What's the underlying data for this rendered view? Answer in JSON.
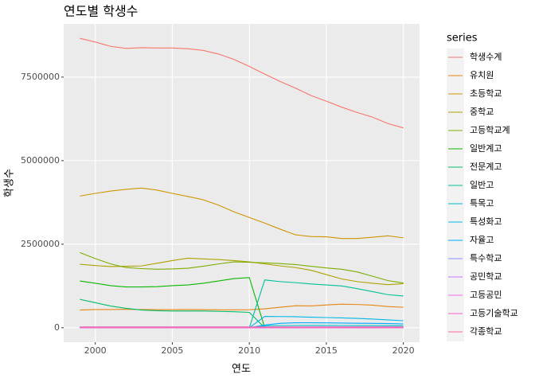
{
  "chart_data": {
    "type": "line",
    "title": "연도별 학생수",
    "x_label": "연도",
    "y_label": "학생수",
    "legend_title": "series",
    "legend": "right",
    "grid": true,
    "x": [
      1999,
      2000,
      2001,
      2002,
      2003,
      2004,
      2005,
      2006,
      2007,
      2008,
      2009,
      2010,
      2011,
      2012,
      2013,
      2014,
      2015,
      2016,
      2017,
      2018,
      2019,
      2020
    ],
    "xlim": [
      1997.95,
      2021.05
    ],
    "xticks": [
      2000,
      2005,
      2010,
      2015,
      2020
    ],
    "ylim": [
      -433000,
      9093000
    ],
    "yticks": [
      0,
      2500000,
      5000000,
      7500000
    ],
    "series": [
      {
        "name": "학생수계",
        "color": "#F8766D",
        "values": [
          8660000,
          8550000,
          8420000,
          8360000,
          8380000,
          8370000,
          8370000,
          8350000,
          8300000,
          8190000,
          8030000,
          7820000,
          7590000,
          7370000,
          7170000,
          6950000,
          6780000,
          6600000,
          6440000,
          6300000,
          6110000,
          5980000
        ]
      },
      {
        "name": "유치원",
        "color": "#E68613",
        "values": [
          530000,
          545000,
          545000,
          550000,
          546000,
          541000,
          541000,
          545000,
          541000,
          537000,
          537000,
          538000,
          565000,
          613000,
          658000,
          653000,
          683000,
          705000,
          695000,
          676000,
          634000,
          612000
        ]
      },
      {
        "name": "초등학교",
        "color": "#CD9600",
        "values": [
          3940000,
          4020000,
          4090000,
          4140000,
          4180000,
          4120000,
          4020000,
          3930000,
          3830000,
          3670000,
          3470000,
          3300000,
          3130000,
          2950000,
          2780000,
          2730000,
          2720000,
          2670000,
          2670000,
          2710000,
          2750000,
          2690000
        ]
      },
      {
        "name": "중학교",
        "color": "#ABA300",
        "values": [
          1900000,
          1860000,
          1830000,
          1840000,
          1850000,
          1930000,
          2010000,
          2080000,
          2060000,
          2040000,
          2010000,
          1970000,
          1910000,
          1850000,
          1800000,
          1720000,
          1590000,
          1460000,
          1380000,
          1330000,
          1290000,
          1320000
        ]
      },
      {
        "name": "고등학교계",
        "color": "#7CAE00",
        "values": [
          2250000,
          2070000,
          1910000,
          1800000,
          1770000,
          1750000,
          1760000,
          1780000,
          1840000,
          1910000,
          1970000,
          1960000,
          1940000,
          1920000,
          1890000,
          1840000,
          1790000,
          1750000,
          1670000,
          1540000,
          1410000,
          1340000
        ]
      },
      {
        "name": "일반계고",
        "color": "#0CB702",
        "values": [
          1400000,
          1330000,
          1260000,
          1220000,
          1220000,
          1230000,
          1260000,
          1280000,
          1330000,
          1400000,
          1470000,
          1500000,
          0,
          0,
          0,
          0,
          0,
          0,
          0,
          0,
          0,
          0
        ]
      },
      {
        "name": "전문계고",
        "color": "#00BE67",
        "values": [
          850000,
          750000,
          650000,
          580000,
          530000,
          510000,
          500000,
          500000,
          500000,
          490000,
          480000,
          460000,
          0,
          0,
          0,
          0,
          0,
          0,
          0,
          0,
          0,
          0
        ]
      },
      {
        "name": "일반고",
        "color": "#00C19A",
        "values": [
          0,
          0,
          0,
          0,
          0,
          0,
          0,
          0,
          0,
          0,
          0,
          0,
          1430000,
          1380000,
          1350000,
          1310000,
          1280000,
          1250000,
          1170000,
          1080000,
          990000,
          950000
        ]
      },
      {
        "name": "특목고",
        "color": "#00BFC4",
        "values": [
          0,
          0,
          0,
          0,
          0,
          0,
          0,
          0,
          0,
          0,
          0,
          0,
          60000,
          64000,
          67000,
          68000,
          68000,
          67000,
          66000,
          65000,
          63000,
          62000
        ]
      },
      {
        "name": "특성화고",
        "color": "#00B8E7",
        "values": [
          0,
          0,
          0,
          0,
          0,
          0,
          0,
          0,
          0,
          0,
          0,
          0,
          340000,
          335000,
          330000,
          315000,
          305000,
          295000,
          280000,
          260000,
          235000,
          210000
        ]
      },
      {
        "name": "자율고",
        "color": "#00A9FF",
        "values": [
          0,
          0,
          0,
          0,
          0,
          0,
          0,
          0,
          0,
          0,
          0,
          0,
          80000,
          130000,
          150000,
          150000,
          145000,
          140000,
          135000,
          130000,
          125000,
          115000
        ]
      },
      {
        "name": "특수학교",
        "color": "#8494FF",
        "values": [
          23000,
          23000,
          23000,
          23000,
          23000,
          23000,
          23000,
          23000,
          24000,
          24000,
          24000,
          24000,
          25000,
          25000,
          25000,
          25000,
          26000,
          26000,
          26000,
          26000,
          26000,
          26000
        ]
      },
      {
        "name": "공민학교",
        "color": "#C77CFF",
        "values": [
          300,
          300,
          300,
          300,
          300,
          300,
          300,
          300,
          300,
          300,
          300,
          300,
          300,
          300,
          300,
          300,
          300,
          300,
          300,
          300,
          300,
          300
        ]
      },
      {
        "name": "고등공민",
        "color": "#ED68ED",
        "values": [
          500,
          500,
          500,
          500,
          500,
          500,
          500,
          500,
          500,
          500,
          500,
          500,
          500,
          500,
          500,
          500,
          500,
          500,
          500,
          500,
          500,
          500
        ]
      },
      {
        "name": "고등기술학교",
        "color": "#FF61CC",
        "values": [
          1500,
          1500,
          1500,
          1500,
          1500,
          1500,
          1500,
          1500,
          1500,
          1500,
          1500,
          1500,
          1500,
          1500,
          1500,
          1500,
          1500,
          1500,
          1500,
          1500,
          1500,
          1500
        ]
      },
      {
        "name": "각종학교",
        "color": "#FF68A1",
        "values": [
          20000,
          20000,
          20000,
          20000,
          20000,
          20000,
          20000,
          20000,
          20000,
          20000,
          20000,
          20000,
          20000,
          20000,
          20000,
          20000,
          20000,
          20000,
          20000,
          20000,
          20000,
          20000
        ]
      }
    ]
  }
}
